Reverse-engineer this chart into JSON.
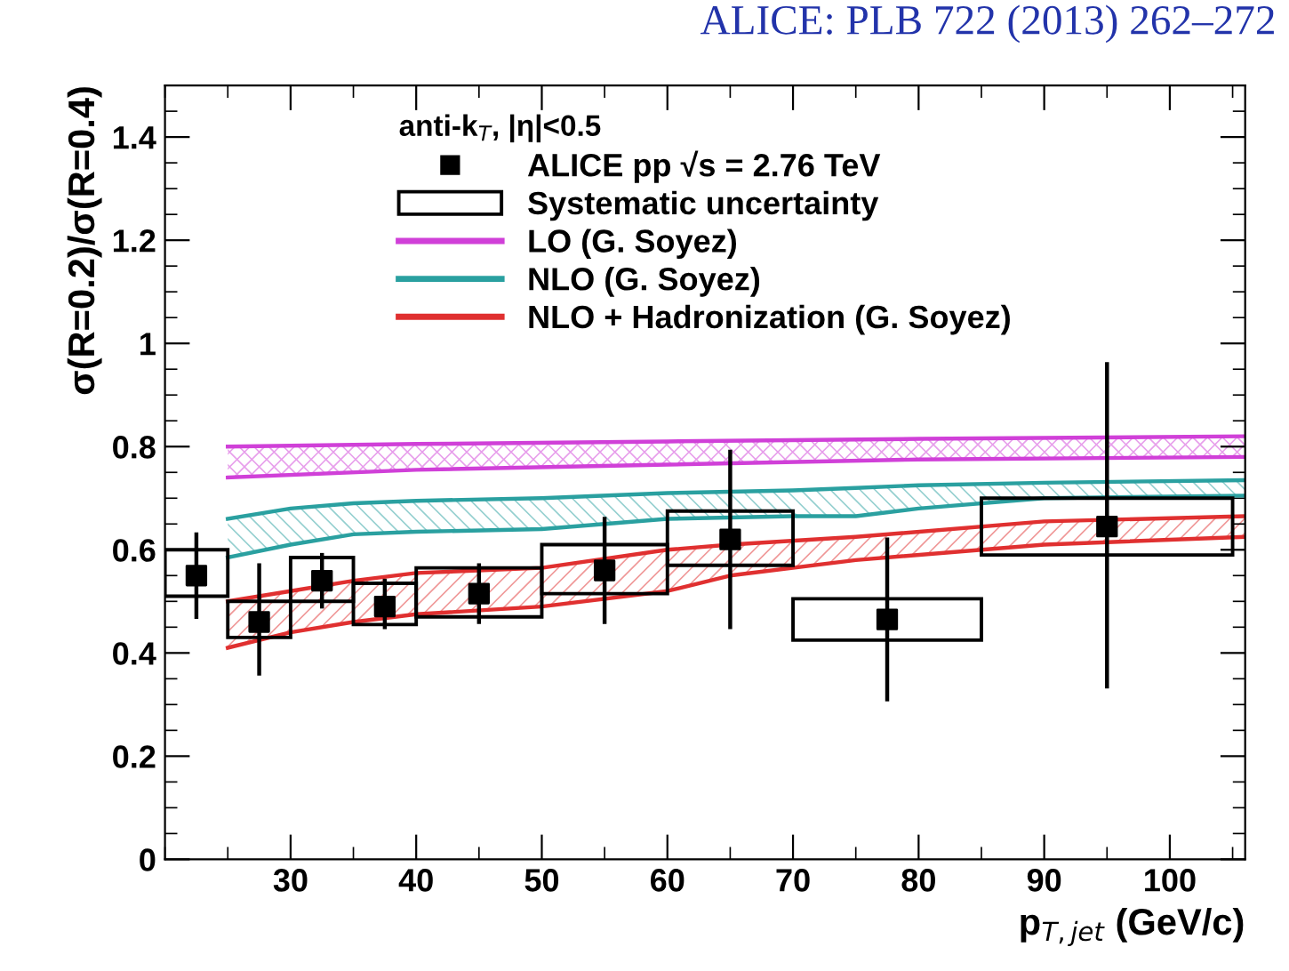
{
  "chart_data": {
    "type": "scatter",
    "title": "ALICE: PLB 722 (2013) 262–272",
    "xlabel": "p$_{T,jet}$ (GeV/c)",
    "ylabel": "σ(R=0.2)/σ(R=0.4)",
    "legend_title": "anti-k$_{T}$, |η|<0.5",
    "xlim": [
      20,
      106
    ],
    "ylim": [
      0,
      1.5
    ],
    "xticks": [
      30,
      40,
      50,
      60,
      70,
      80,
      90,
      100
    ],
    "yticks": [
      0,
      0.2,
      0.4,
      0.6,
      0.8,
      {
        "value": 1,
        "label": "1"
      },
      1.2,
      1.4
    ],
    "grid": false,
    "legend": "top",
    "marker": "square",
    "series": [
      {
        "type": "line",
        "marker": "none",
        "name": "LO (G. Soyez)",
        "color": "#d040d8",
        "x": [
          25,
          40,
          60,
          80,
          106
        ],
        "values": [
          0.8,
          0.805,
          0.81,
          0.815,
          0.82
        ]
      },
      {
        "type": "line",
        "marker": "none",
        "color": "#d040d8",
        "x": [
          25,
          40,
          60,
          80,
          106
        ],
        "values": [
          0.74,
          0.755,
          0.765,
          0.775,
          0.78
        ]
      },
      {
        "type": "line",
        "marker": "none",
        "name": "NLO (G. Soyez)",
        "color": "#2aa0a0",
        "x": [
          25,
          30,
          35,
          40,
          50,
          60,
          70,
          75,
          80,
          90,
          106
        ],
        "values": [
          0.66,
          0.68,
          0.69,
          0.695,
          0.7,
          0.71,
          0.715,
          0.72,
          0.725,
          0.73,
          0.735
        ]
      },
      {
        "type": "line",
        "marker": "none",
        "color": "#2aa0a0",
        "x": [
          25,
          30,
          35,
          40,
          50,
          60,
          70,
          75,
          80,
          90,
          106
        ],
        "values": [
          0.585,
          0.61,
          0.63,
          0.635,
          0.64,
          0.66,
          0.665,
          0.665,
          0.68,
          0.7,
          0.705
        ]
      },
      {
        "type": "line",
        "marker": "none",
        "name": "NLO + Hadronization (G. Soyez)",
        "color": "#e03030",
        "x": [
          25,
          30,
          35,
          40,
          50,
          60,
          65,
          75,
          90,
          106
        ],
        "values": [
          0.5,
          0.52,
          0.54,
          0.555,
          0.565,
          0.6,
          0.61,
          0.625,
          0.655,
          0.665
        ]
      },
      {
        "type": "line",
        "marker": "none",
        "color": "#e03030",
        "x": [
          25,
          30,
          35,
          40,
          50,
          60,
          65,
          75,
          90,
          106
        ],
        "values": [
          0.41,
          0.44,
          0.46,
          0.475,
          0.49,
          0.52,
          0.55,
          0.58,
          0.61,
          0.625
        ]
      },
      {
        "type": "bar",
        "name": "Systematic uncertainty",
        "color": "#000000",
        "x": [
          22.5,
          27.5,
          32.5,
          37.5,
          45,
          55,
          65,
          77.5,
          95
        ],
        "base": [
          0.51,
          0.43,
          0.5,
          0.455,
          0.47,
          0.515,
          0.57,
          0.425,
          0.59
        ],
        "values": [
          0.09,
          0.07,
          0.085,
          0.08,
          0.095,
          0.095,
          0.105,
          0.08,
          0.11
        ]
      },
      {
        "name": "ALICE pp √s = 2.76 TeV",
        "color": "#000000",
        "x": [
          22.5,
          27.5,
          32.5,
          37.5,
          45,
          55,
          65,
          77.5,
          95
        ],
        "values": [
          0.55,
          0.46,
          0.54,
          0.49,
          0.515,
          0.56,
          0.62,
          0.465,
          0.645
        ],
        "errors": [
          [
            0.47,
            0.63
          ],
          [
            0.36,
            0.57
          ],
          [
            0.49,
            0.59
          ],
          [
            0.45,
            0.54
          ],
          [
            0.46,
            0.57
          ],
          [
            0.46,
            0.66
          ],
          [
            0.45,
            0.79
          ],
          [
            0.31,
            0.62
          ],
          [
            0.335,
            0.96
          ]
        ]
      }
    ]
  }
}
